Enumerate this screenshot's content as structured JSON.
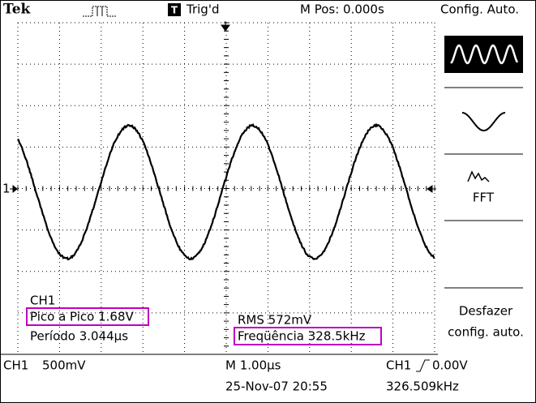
{
  "header": {
    "brand": "Tek",
    "trigger_status": "Trig'd",
    "trigger_icon": "T",
    "position": "M Pos: 0.000s",
    "menu_title": "Config. Auto."
  },
  "display": {
    "channel_marker": "1"
  },
  "menu": {
    "fft": "FFT",
    "undo_line1": "Desfazer",
    "undo_line2": "config. auto."
  },
  "measurements": {
    "channel": "CH1",
    "peak_to_peak": "Pico a Pico 1.68V",
    "period": "Período 3.044µs",
    "rms": "RMS 572mV",
    "frequency": "Freqüência 328.5kHz"
  },
  "footer": {
    "channel": "CH1",
    "volts_div": "500mV",
    "time_div": "M 1.00µs",
    "trigger_channel": "CH1",
    "trigger_level": "0.00V",
    "datetime": "25-Nov-07 20:55",
    "trigger_freq": "326.509kHz"
  }
}
